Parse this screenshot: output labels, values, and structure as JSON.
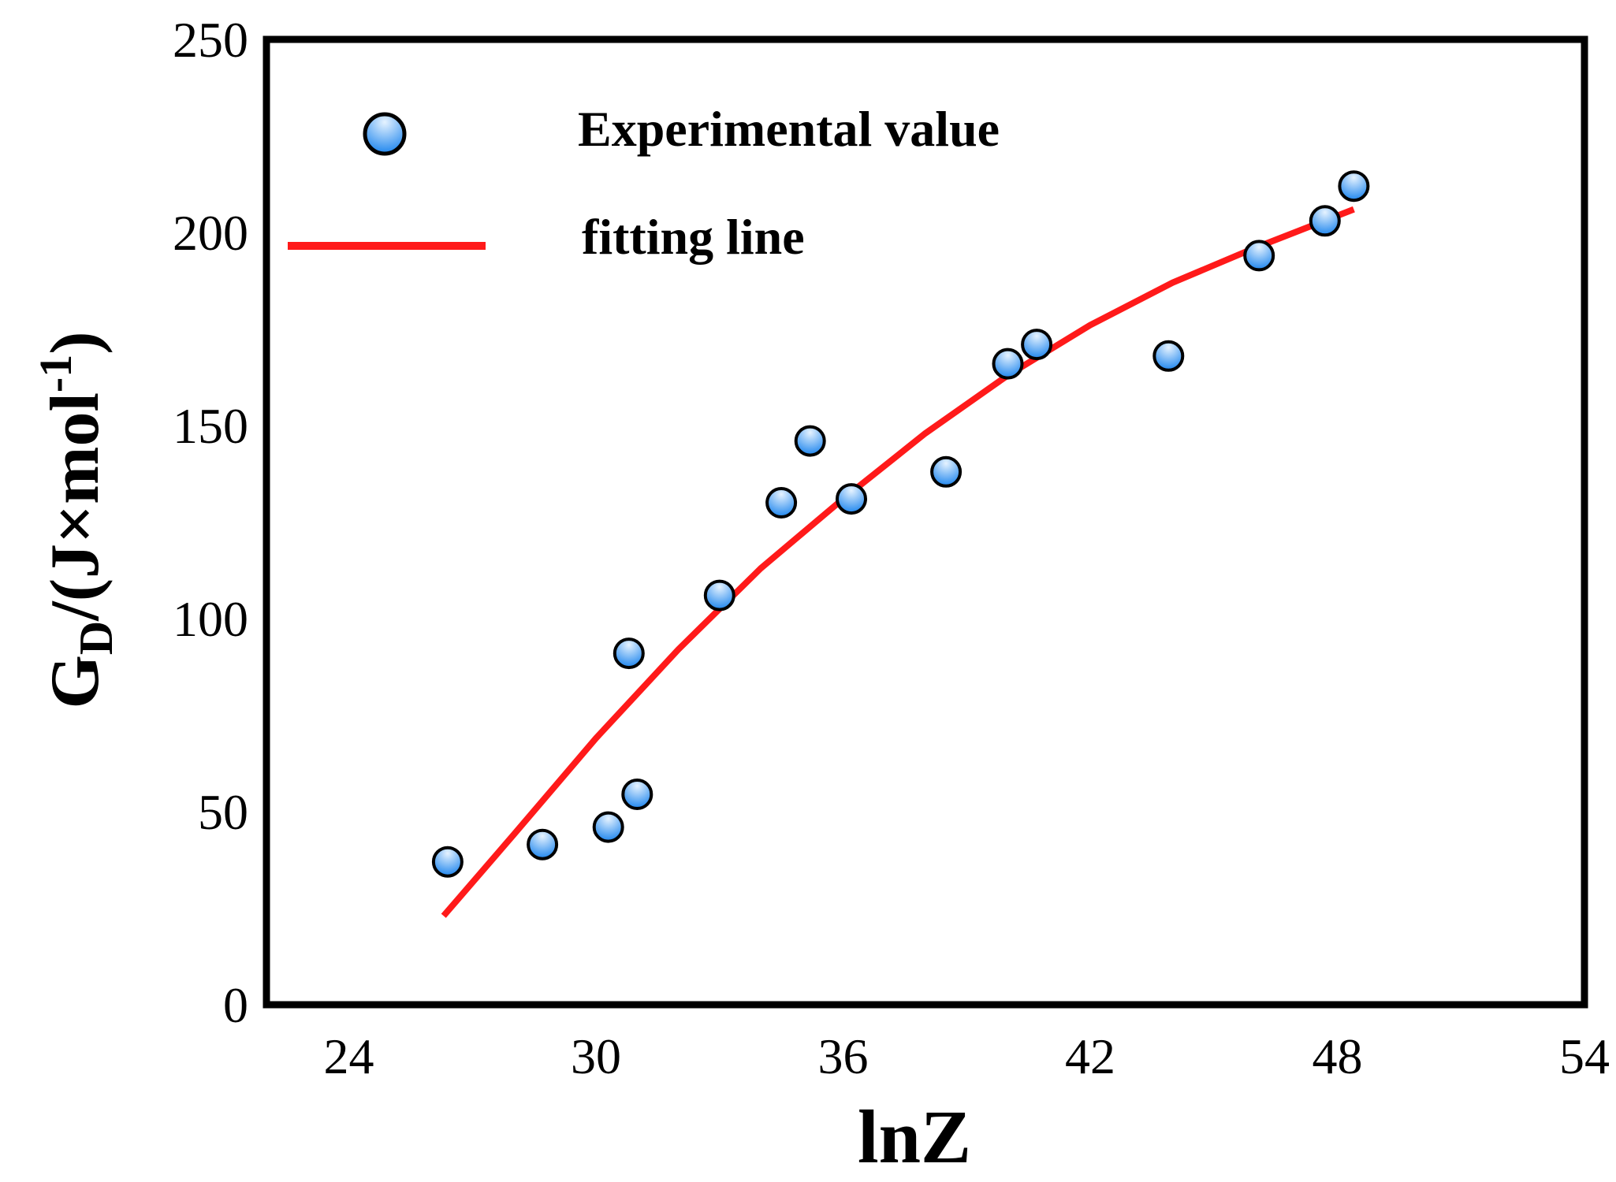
{
  "chart_data": {
    "type": "scatter",
    "xlabel": "lnZ",
    "ylabel": {
      "main": "G",
      "sub": "D",
      "rest": "/(J×mol",
      "sup": "-1",
      "close": ")"
    },
    "xlim": [
      22,
      54
    ],
    "ylim": [
      0,
      250
    ],
    "xticks": [
      24,
      30,
      36,
      42,
      48,
      54
    ],
    "yticks": [
      0,
      50,
      100,
      150,
      200,
      250
    ],
    "grid": false,
    "legend_position": "top-left",
    "colors": {
      "marker_light": "#d6ecff",
      "marker_dark": "#1f86ee",
      "fit_line": "#ff1a1a",
      "axis": "#000000"
    },
    "series": [
      {
        "name": "Experimental value",
        "kind": "scatter",
        "points": [
          [
            26.4,
            37
          ],
          [
            28.7,
            41.5
          ],
          [
            30.3,
            46
          ],
          [
            30.8,
            91
          ],
          [
            31.0,
            54.5
          ],
          [
            33.0,
            106
          ],
          [
            34.5,
            130
          ],
          [
            35.2,
            146
          ],
          [
            36.2,
            131
          ],
          [
            38.5,
            138
          ],
          [
            40.0,
            166
          ],
          [
            40.7,
            171
          ],
          [
            43.9,
            168
          ],
          [
            46.1,
            194
          ],
          [
            47.7,
            203
          ],
          [
            48.4,
            212
          ]
        ]
      },
      {
        "name": "fitting line",
        "kind": "line",
        "points": [
          [
            26.3,
            23
          ],
          [
            28.0,
            44
          ],
          [
            30.0,
            69
          ],
          [
            32.0,
            92
          ],
          [
            34.0,
            113
          ],
          [
            36.0,
            131
          ],
          [
            38.0,
            148
          ],
          [
            40.0,
            163
          ],
          [
            42.0,
            176
          ],
          [
            44.0,
            187
          ],
          [
            46.0,
            196
          ],
          [
            48.4,
            206
          ]
        ]
      }
    ]
  }
}
